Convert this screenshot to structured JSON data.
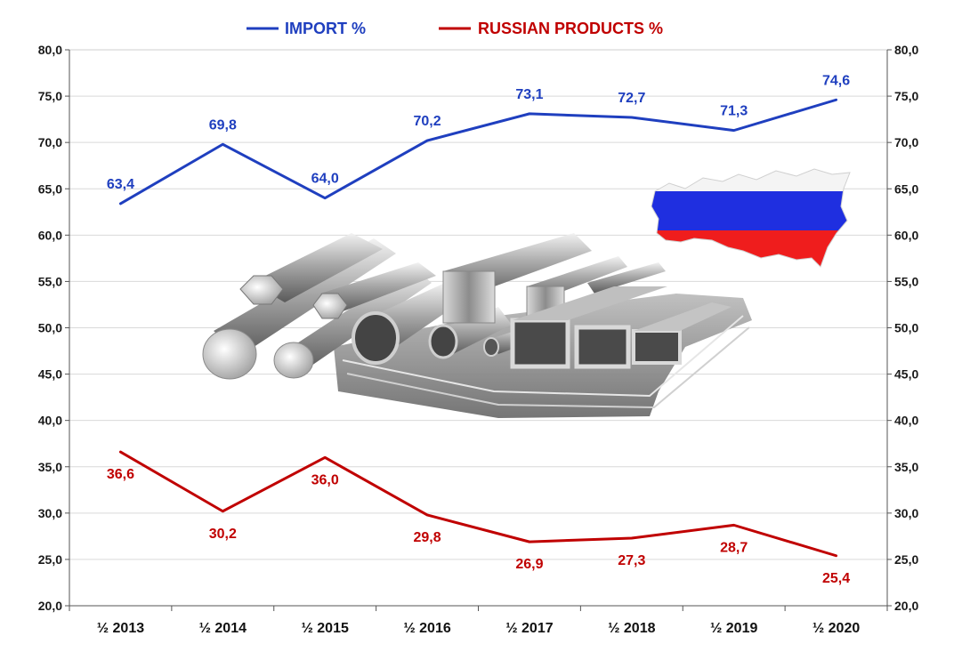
{
  "chart_data": {
    "type": "line",
    "categories": [
      "½ 2013",
      "½ 2014",
      "½ 2015",
      "½ 2016",
      "½ 2017",
      "½ 2018",
      "½ 2019",
      "½ 2020"
    ],
    "series": [
      {
        "name": "IMPORT %",
        "color": "#1f3fbf",
        "values": [
          63.4,
          69.8,
          64.0,
          70.2,
          73.1,
          72.7,
          71.3,
          74.6
        ],
        "labels": [
          "63,4",
          "69,8",
          "64,0",
          "70,2",
          "73,1",
          "72,7",
          "71,3",
          "74,6"
        ]
      },
      {
        "name": "RUSSIAN PRODUCTS %",
        "color": "#c00000",
        "values": [
          36.6,
          30.2,
          36.0,
          29.8,
          26.9,
          27.3,
          28.7,
          25.4
        ],
        "labels": [
          "36,6",
          "30,2",
          "36,0",
          "29,8",
          "26,9",
          "27,3",
          "28,7",
          "25,4"
        ]
      }
    ],
    "ylim": [
      20,
      80
    ],
    "yticks": [
      "20,0",
      "25,0",
      "30,0",
      "35,0",
      "40,0",
      "45,0",
      "50,0",
      "55,0",
      "60,0",
      "65,0",
      "70,0",
      "75,0",
      "80,0"
    ],
    "grid": true,
    "legend": "top-center",
    "secondary_axis": "right-mirrored"
  },
  "illustrations": {
    "center": "steel-products-image",
    "top-right": "russia-flag-map-image"
  }
}
